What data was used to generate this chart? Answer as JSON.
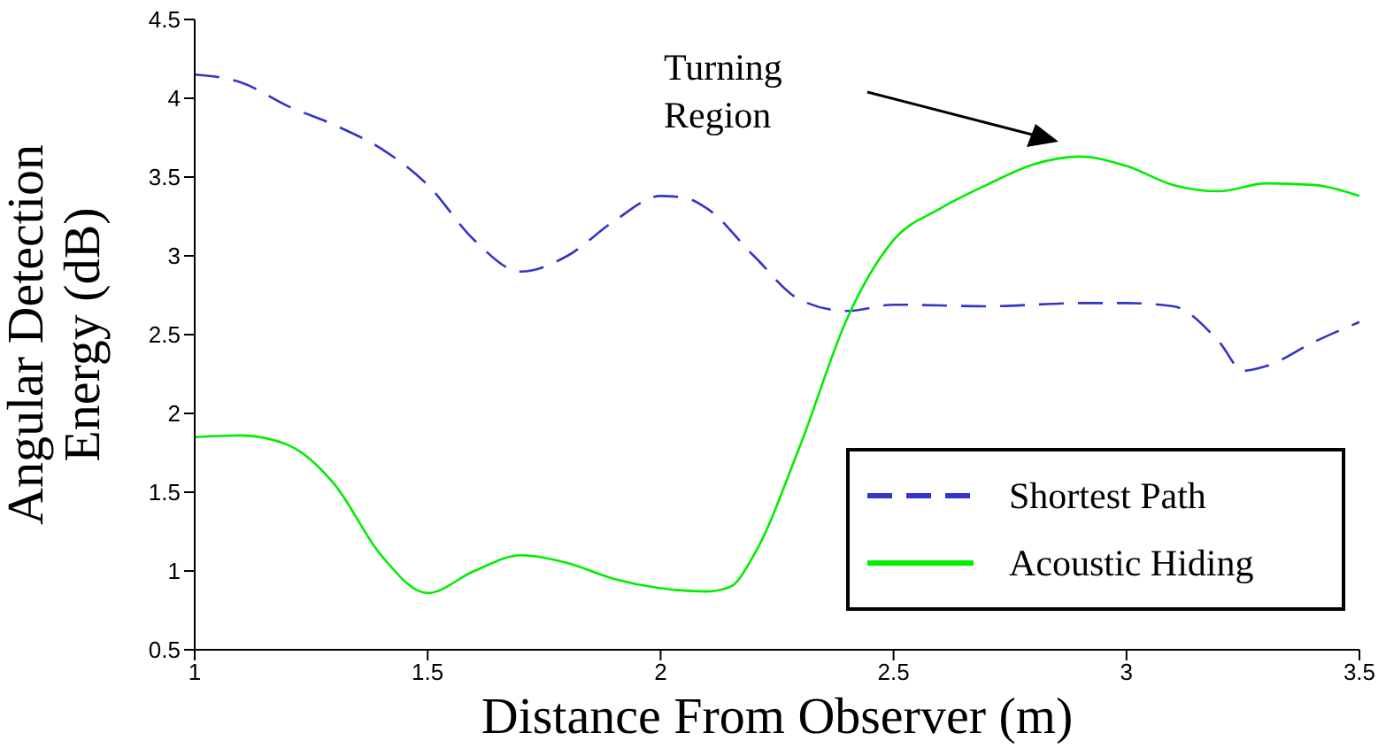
{
  "chart_data": {
    "type": "line",
    "xlabel": "Distance From Observer (m)",
    "ylabel": "Angular Detection Energy (dB)",
    "xlim": [
      1,
      3.5
    ],
    "xticks": [
      1,
      1.5,
      2,
      2.5,
      3,
      3.5
    ],
    "ylim": [
      0.5,
      4.5
    ],
    "yticks": [
      0.5,
      1,
      1.5,
      2,
      2.5,
      3,
      3.5,
      4,
      4.5
    ],
    "grid": false,
    "legend": "bottom right",
    "marker": "none",
    "annotations": [
      "Turning\nRegion"
    ],
    "series": [
      {
        "name": "Shortest Path",
        "color": "#3333cc",
        "line_style": "dashed",
        "x": [
          1,
          1.1,
          1.2,
          1.3,
          1.4,
          1.5,
          1.6,
          1.7,
          1.8,
          1.9,
          2,
          2.05,
          2.1,
          2.2,
          2.3,
          2.4,
          2.5,
          2.7,
          2.9,
          3,
          3.1,
          3.2,
          3.25,
          3.3,
          3.4,
          3.5
        ],
        "values": [
          4.15,
          4.1,
          3.95,
          3.83,
          3.68,
          3.45,
          3.1,
          2.9,
          3,
          3.22,
          3.38,
          3.37,
          3.3,
          3,
          2.72,
          2.65,
          2.69,
          2.68,
          2.7,
          2.7,
          2.68,
          2.45,
          2.27,
          2.3,
          2.45,
          2.58
        ]
      },
      {
        "name": "Acoustic Hiding",
        "color": "#00ee00",
        "line_style": "solid",
        "x": [
          1,
          1.1,
          1.2,
          1.3,
          1.4,
          1.5,
          1.6,
          1.7,
          1.8,
          1.9,
          2,
          2.1,
          2.15,
          2.2,
          2.3,
          2.4,
          2.5,
          2.6,
          2.7,
          2.8,
          2.9,
          3,
          3.1,
          3.2,
          3.3,
          3.4,
          3.5
        ],
        "values": [
          1.85,
          1.86,
          1.8,
          1.55,
          1.1,
          0.86,
          1,
          1.1,
          1.05,
          0.95,
          0.89,
          0.87,
          0.9,
          1.1,
          1.8,
          2.6,
          3.1,
          3.3,
          3.45,
          3.58,
          3.63,
          3.57,
          3.45,
          3.41,
          3.46,
          3.45,
          3.38
        ]
      }
    ]
  }
}
